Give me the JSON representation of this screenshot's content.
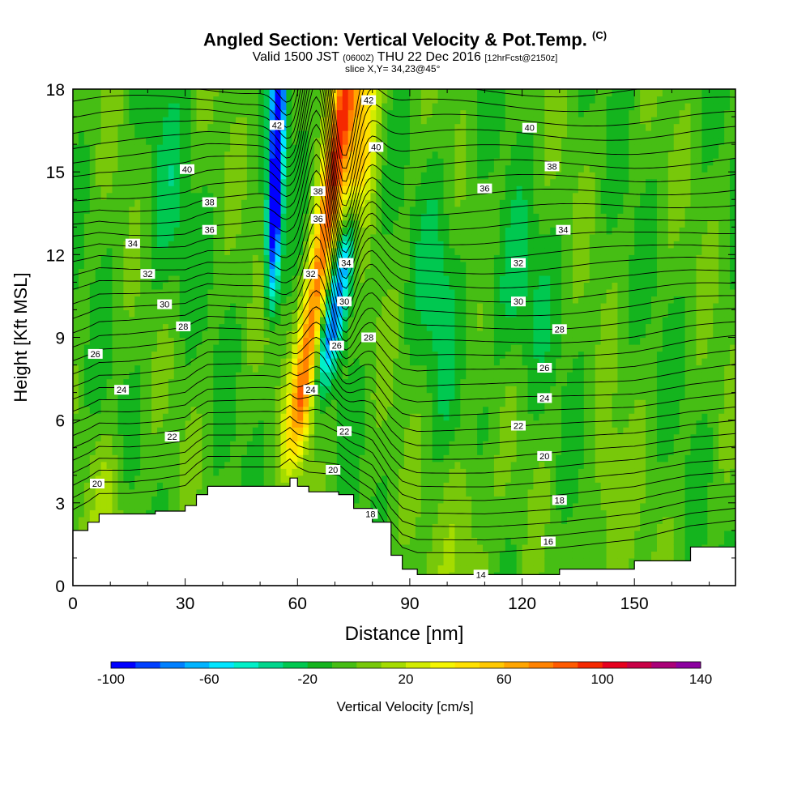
{
  "header": {
    "title": "Angled Section: Vertical Velocity & Pot.Temp.",
    "title_unit": "(C)",
    "valid_prefix": "Valid 1500 JST",
    "valid_utc": "(0600Z)",
    "valid_date": "THU 22 Dec 2016",
    "forecast": "[12hrFcst@2150z]",
    "slice": "slice X,Y= 34,23@45°"
  },
  "chart_data": {
    "type": "heatmap",
    "xlabel": "Distance [nm]",
    "ylabel": "Height [Kft MSL]",
    "xlim": [
      0,
      177
    ],
    "ylim": [
      0,
      18
    ],
    "x_ticks": [
      0,
      30,
      60,
      90,
      120,
      150
    ],
    "y_ticks": [
      0,
      3,
      6,
      9,
      12,
      15,
      18
    ],
    "colorbar": {
      "title": "Vertical Velocity [cm/s]",
      "tick_labels": [
        "-100",
        "-60",
        "-20",
        "20",
        "60",
        "100",
        "140"
      ],
      "tick_values": [
        -100,
        -60,
        -20,
        20,
        60,
        100,
        140
      ],
      "range": [
        -100,
        140
      ],
      "step": 10,
      "colors": [
        "#0000ff",
        "#0040ff",
        "#0080ff",
        "#00b4ff",
        "#00e6ff",
        "#00f0c8",
        "#00d68c",
        "#00c850",
        "#14b41e",
        "#46be14",
        "#78c80a",
        "#a5dc00",
        "#d2ec00",
        "#f5f500",
        "#ffe100",
        "#ffc800",
        "#ffa500",
        "#ff8200",
        "#ff5a00",
        "#f52800",
        "#e6001e",
        "#c80046",
        "#aa0078",
        "#8c00a0"
      ]
    },
    "terrain_kft": [
      [
        0,
        2.0
      ],
      [
        4,
        2.3
      ],
      [
        7,
        2.6
      ],
      [
        15,
        2.6
      ],
      [
        22,
        2.7
      ],
      [
        30,
        2.9
      ],
      [
        33,
        3.3
      ],
      [
        36,
        3.6
      ],
      [
        55,
        3.6
      ],
      [
        58,
        3.9
      ],
      [
        60,
        3.6
      ],
      [
        63,
        3.4
      ],
      [
        71,
        3.3
      ],
      [
        75,
        2.8
      ],
      [
        80,
        2.3
      ],
      [
        85,
        1.1
      ],
      [
        88,
        0.6
      ],
      [
        92,
        0.4
      ],
      [
        110,
        0.4
      ],
      [
        130,
        0.6
      ],
      [
        150,
        0.9
      ],
      [
        165,
        1.4
      ],
      [
        177,
        1.6
      ]
    ],
    "theta_contour_labels": [
      {
        "value": "42",
        "x": 54.5,
        "y": 16.7
      },
      {
        "value": "42",
        "x": 79,
        "y": 17.6
      },
      {
        "value": "40",
        "x": 30.5,
        "y": 15.1
      },
      {
        "value": "40",
        "x": 81,
        "y": 15.9
      },
      {
        "value": "40",
        "x": 122,
        "y": 16.6
      },
      {
        "value": "38",
        "x": 36.5,
        "y": 13.9
      },
      {
        "value": "38",
        "x": 65.5,
        "y": 14.3
      },
      {
        "value": "38",
        "x": 128,
        "y": 15.2
      },
      {
        "value": "36",
        "x": 36.5,
        "y": 12.9
      },
      {
        "value": "36",
        "x": 65.5,
        "y": 13.3
      },
      {
        "value": "36",
        "x": 110,
        "y": 14.4
      },
      {
        "value": "34",
        "x": 16,
        "y": 12.4
      },
      {
        "value": "34",
        "x": 73,
        "y": 11.7
      },
      {
        "value": "34",
        "x": 131,
        "y": 12.9
      },
      {
        "value": "32",
        "x": 20,
        "y": 11.3
      },
      {
        "value": "32",
        "x": 63.5,
        "y": 11.3
      },
      {
        "value": "32",
        "x": 119,
        "y": 11.7
      },
      {
        "value": "30",
        "x": 24.5,
        "y": 10.2
      },
      {
        "value": "30",
        "x": 72.5,
        "y": 10.3
      },
      {
        "value": "30",
        "x": 119,
        "y": 10.3
      },
      {
        "value": "28",
        "x": 29.5,
        "y": 9.4
      },
      {
        "value": "28",
        "x": 79,
        "y": 9.0
      },
      {
        "value": "28",
        "x": 130,
        "y": 9.3
      },
      {
        "value": "26",
        "x": 6,
        "y": 8.4
      },
      {
        "value": "26",
        "x": 70.5,
        "y": 8.7
      },
      {
        "value": "26",
        "x": 126,
        "y": 7.9
      },
      {
        "value": "24",
        "x": 13,
        "y": 7.1
      },
      {
        "value": "24",
        "x": 63.5,
        "y": 7.1
      },
      {
        "value": "24",
        "x": 126,
        "y": 6.8
      },
      {
        "value": "22",
        "x": 26.5,
        "y": 5.4
      },
      {
        "value": "22",
        "x": 72.5,
        "y": 5.6
      },
      {
        "value": "22",
        "x": 119,
        "y": 5.8
      },
      {
        "value": "20",
        "x": 6.5,
        "y": 3.7
      },
      {
        "value": "20",
        "x": 69.5,
        "y": 4.2
      },
      {
        "value": "20",
        "x": 126,
        "y": 4.7
      },
      {
        "value": "18",
        "x": 79.5,
        "y": 2.6
      },
      {
        "value": "18",
        "x": 130,
        "y": 3.1
      },
      {
        "value": "16",
        "x": 127,
        "y": 1.6
      },
      {
        "value": "14",
        "x": 109,
        "y": 0.4
      }
    ]
  }
}
